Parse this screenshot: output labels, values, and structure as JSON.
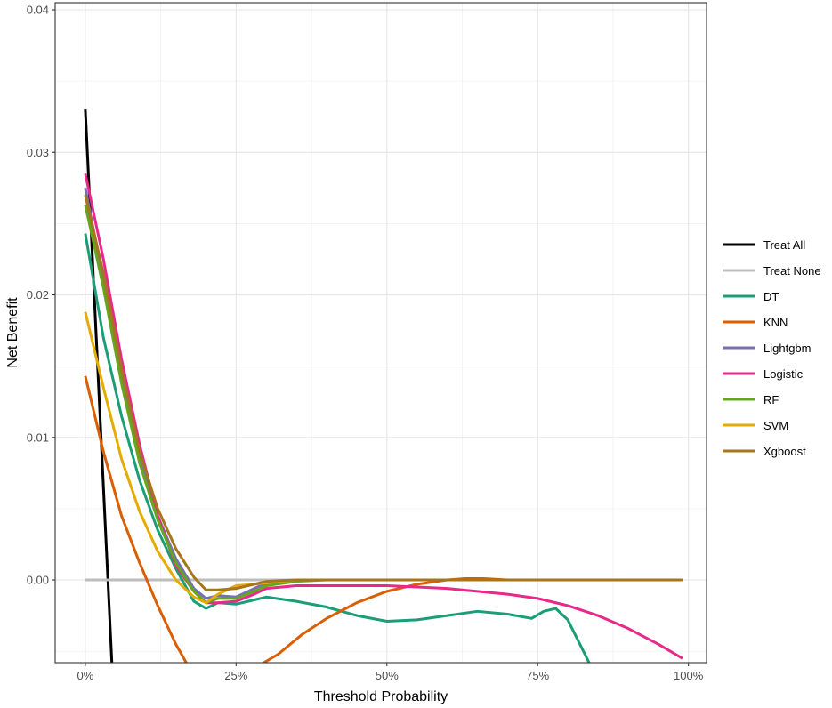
{
  "chart_data": {
    "type": "line",
    "xlabel": "Threshold Probability",
    "ylabel": "Net Benefit",
    "xlim": [
      -0.05,
      1.03
    ],
    "ylim": [
      -0.0058,
      0.0405
    ],
    "x_ticks": [
      0,
      0.25,
      0.5,
      0.75,
      1.0
    ],
    "x_tick_labels": [
      "0%",
      "25%",
      "50%",
      "75%",
      "100%"
    ],
    "y_ticks": [
      0.0,
      0.01,
      0.02,
      0.03,
      0.04
    ],
    "y_tick_labels": [
      "0.00",
      "0.01",
      "0.02",
      "0.03",
      "0.04"
    ],
    "grid": true,
    "legend_position": "right",
    "series": [
      {
        "name": "Treat All",
        "color": "#000000",
        "x": [
          0,
          0.044
        ],
        "y": [
          0.033,
          -0.0058
        ]
      },
      {
        "name": "Treat None",
        "color": "#bdbdbd",
        "x": [
          0,
          0.99
        ],
        "y": [
          0,
          0
        ]
      },
      {
        "name": "DT",
        "color": "#1b9e77",
        "x": [
          0,
          0.03,
          0.06,
          0.09,
          0.12,
          0.15,
          0.18,
          0.2,
          0.22,
          0.25,
          0.28,
          0.3,
          0.35,
          0.4,
          0.45,
          0.5,
          0.55,
          0.6,
          0.65,
          0.7,
          0.74,
          0.76,
          0.78,
          0.8,
          0.82,
          0.84
        ],
        "y": [
          0.0243,
          0.017,
          0.0115,
          0.007,
          0.0035,
          0.0008,
          -0.0015,
          -0.002,
          -0.0016,
          -0.0017,
          -0.0014,
          -0.0012,
          -0.0015,
          -0.0019,
          -0.0025,
          -0.0029,
          -0.0028,
          -0.0025,
          -0.0022,
          -0.0024,
          -0.0027,
          -0.0022,
          -0.002,
          -0.0028,
          -0.0045,
          -0.0062
        ]
      },
      {
        "name": "KNN",
        "color": "#d95f02",
        "x": [
          0,
          0.03,
          0.06,
          0.09,
          0.12,
          0.15,
          0.17,
          0.21,
          0.28,
          0.32,
          0.36,
          0.4,
          0.45,
          0.5,
          0.55,
          0.6,
          0.63,
          0.66,
          0.7,
          0.75,
          0.99
        ],
        "y": [
          0.0143,
          0.009,
          0.0045,
          0.0012,
          -0.0018,
          -0.0045,
          -0.006,
          -0.0062,
          -0.0062,
          -0.0052,
          -0.0038,
          -0.0027,
          -0.0016,
          -0.0008,
          -0.0003,
          0.0,
          0.0001,
          0.0001,
          0.0,
          0.0,
          0.0
        ]
      },
      {
        "name": "Lightgbm",
        "color": "#7570b3",
        "x": [
          0,
          0.03,
          0.06,
          0.09,
          0.12,
          0.15,
          0.18,
          0.2,
          0.22,
          0.25,
          0.28,
          0.3,
          0.35,
          0.4,
          0.5,
          0.6,
          0.8,
          0.99
        ],
        "y": [
          0.0275,
          0.021,
          0.0145,
          0.0085,
          0.0045,
          0.0015,
          -0.0006,
          -0.0013,
          -0.0011,
          -0.0012,
          -0.0006,
          -0.0002,
          0.0,
          0.0,
          0.0,
          0.0,
          0.0,
          0.0
        ]
      },
      {
        "name": "Logistic",
        "color": "#e7298a",
        "x": [
          0,
          0.03,
          0.06,
          0.09,
          0.12,
          0.15,
          0.18,
          0.2,
          0.22,
          0.25,
          0.28,
          0.3,
          0.35,
          0.4,
          0.5,
          0.55,
          0.6,
          0.65,
          0.7,
          0.75,
          0.8,
          0.85,
          0.9,
          0.95,
          0.99
        ],
        "y": [
          0.0285,
          0.0225,
          0.0155,
          0.0095,
          0.0045,
          0.001,
          -0.0008,
          -0.0016,
          -0.0016,
          -0.0015,
          -0.001,
          -0.0006,
          -0.0004,
          -0.0004,
          -0.0004,
          -0.0005,
          -0.0006,
          -0.0008,
          -0.001,
          -0.0013,
          -0.0018,
          -0.0025,
          -0.0034,
          -0.0045,
          -0.0055
        ]
      },
      {
        "name": "RF",
        "color": "#66a61e",
        "x": [
          0,
          0.03,
          0.06,
          0.09,
          0.12,
          0.15,
          0.18,
          0.2,
          0.22,
          0.25,
          0.28,
          0.3,
          0.35,
          0.4,
          0.5,
          0.99
        ],
        "y": [
          0.0263,
          0.0205,
          0.0138,
          0.0082,
          0.0042,
          0.0012,
          -0.0008,
          -0.0016,
          -0.0013,
          -0.0013,
          -0.0008,
          -0.0004,
          -0.0001,
          0.0,
          0.0,
          0.0
        ]
      },
      {
        "name": "SVM",
        "color": "#e6ab02",
        "x": [
          0,
          0.03,
          0.06,
          0.09,
          0.12,
          0.15,
          0.18,
          0.2,
          0.22,
          0.25,
          0.28,
          0.3,
          0.35,
          0.4,
          0.5,
          0.99
        ],
        "y": [
          0.0188,
          0.0135,
          0.0085,
          0.0048,
          0.002,
          0.0,
          -0.0012,
          -0.0016,
          -0.001,
          -0.0004,
          -0.0003,
          -0.0002,
          0.0,
          0.0,
          0.0,
          0.0
        ]
      },
      {
        "name": "Xgboost",
        "color": "#a6761d",
        "x": [
          0,
          0.03,
          0.06,
          0.09,
          0.12,
          0.15,
          0.18,
          0.2,
          0.22,
          0.25,
          0.28,
          0.3,
          0.35,
          0.4,
          0.5,
          0.99
        ],
        "y": [
          0.027,
          0.0215,
          0.0148,
          0.009,
          0.005,
          0.0022,
          0.0002,
          -0.0007,
          -0.0007,
          -0.0006,
          -0.0003,
          -0.0001,
          0.0,
          0.0,
          0.0,
          0.0
        ]
      }
    ]
  }
}
